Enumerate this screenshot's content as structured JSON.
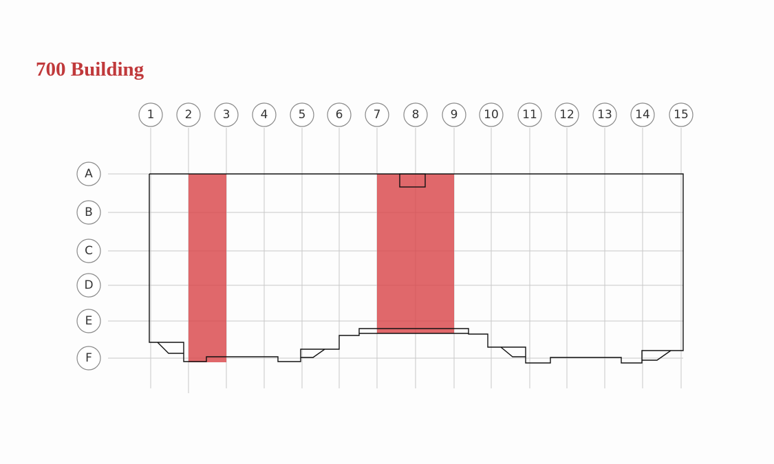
{
  "header": {
    "title": "700 Building"
  },
  "columns": [
    "1",
    "2",
    "3",
    "4",
    "5",
    "6",
    "7",
    "8",
    "9",
    "10",
    "11",
    "12",
    "13",
    "14",
    "15"
  ],
  "rows": [
    "A",
    "B",
    "C",
    "D",
    "E",
    "F"
  ]
}
